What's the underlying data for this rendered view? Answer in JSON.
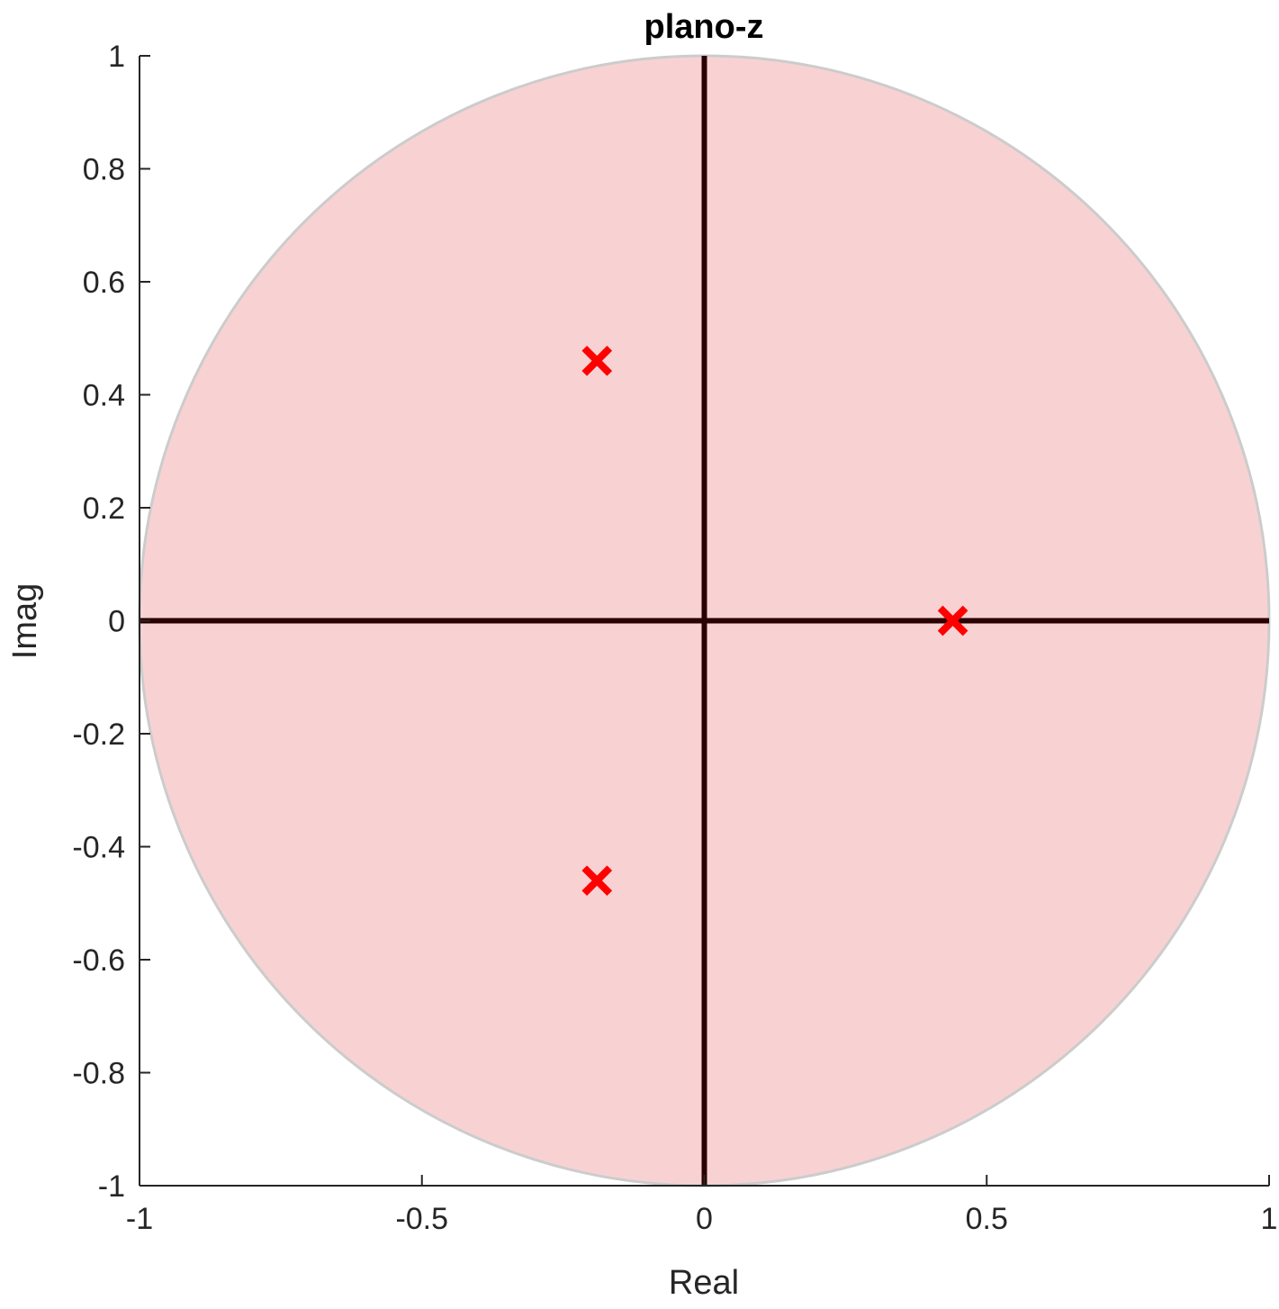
{
  "chart_data": {
    "type": "scatter",
    "title": "plano-z",
    "xlabel": "Real",
    "ylabel": "Imag",
    "xlim": [
      -1,
      1
    ],
    "ylim": [
      -1,
      1
    ],
    "xticks": [
      -1,
      -0.5,
      0,
      0.5,
      1
    ],
    "xtick_labels": [
      "-1",
      "-0.5",
      "0",
      "0.5",
      "1"
    ],
    "yticks": [
      1,
      0.8,
      0.6,
      0.4,
      0.2,
      0,
      -0.2,
      -0.4,
      -0.6,
      -0.8,
      -1
    ],
    "ytick_labels": [
      "1",
      "0.8",
      "0.6",
      "0.4",
      "0.2",
      "0",
      "-0.2",
      "-0.4",
      "-0.6",
      "-0.8",
      "-1"
    ],
    "grid": false,
    "unit_circle": {
      "radius": 1,
      "fill": "#f8d2d3",
      "stroke": "#cccccc"
    },
    "axes_lines_color": "#2a0000",
    "series": [
      {
        "marker": "x",
        "color": "#ff0000",
        "points": [
          {
            "x": -0.19,
            "y": 0.46
          },
          {
            "x": -0.19,
            "y": -0.46
          },
          {
            "x": 0.44,
            "y": 0.0
          }
        ]
      }
    ]
  }
}
